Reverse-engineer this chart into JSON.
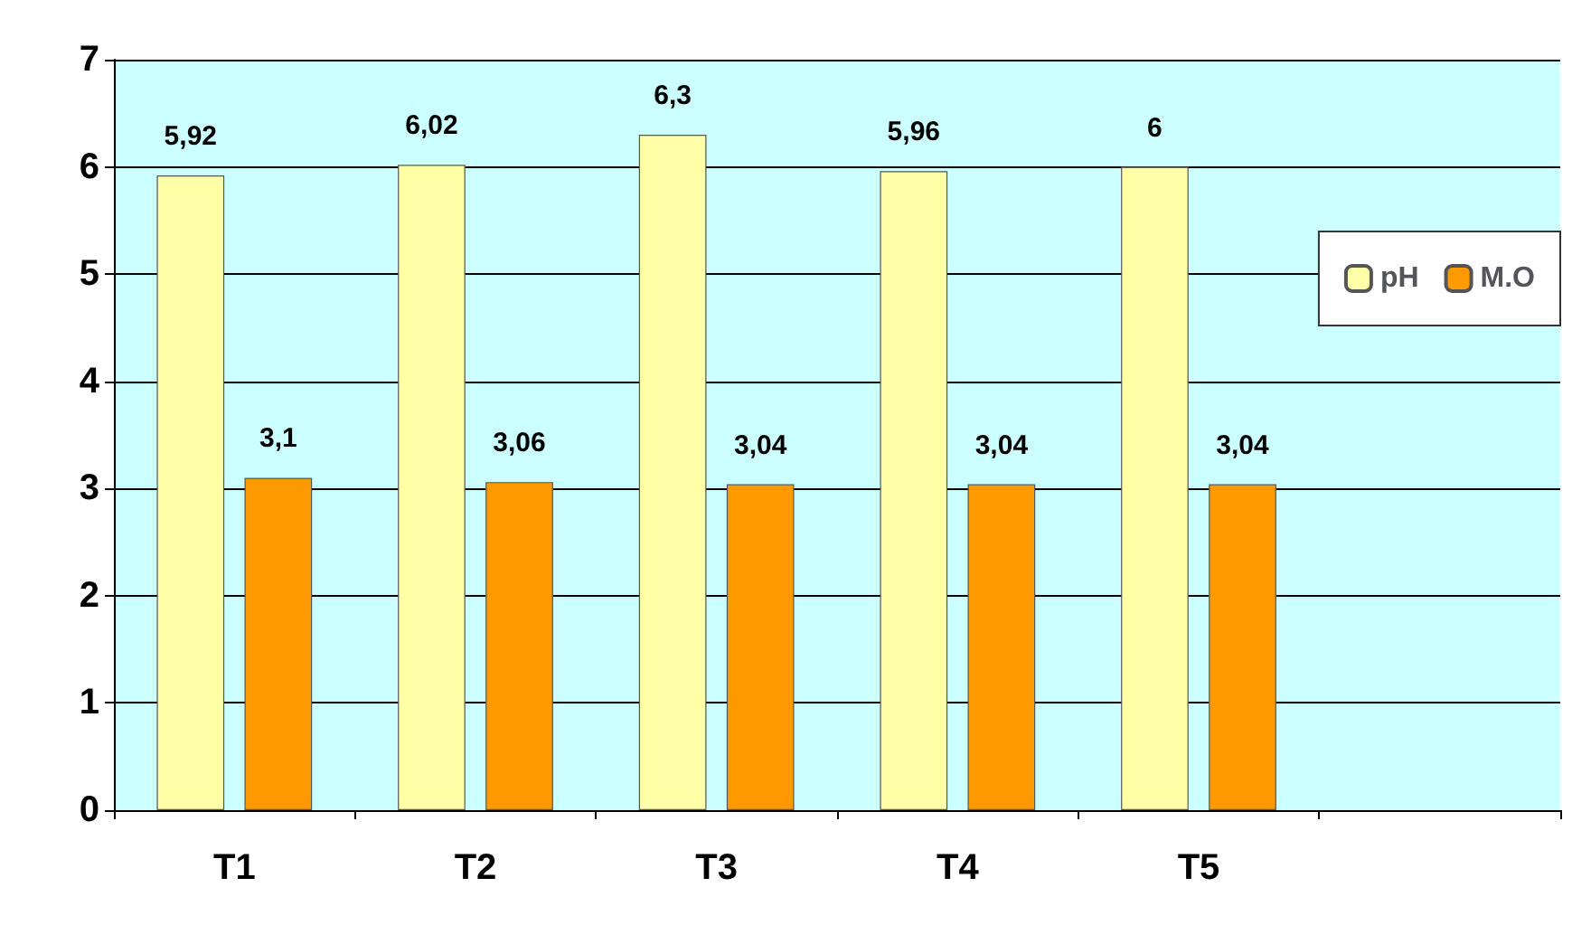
{
  "chart_data": {
    "type": "bar",
    "categories": [
      "T1",
      "T2",
      "T3",
      "T4",
      "T5",
      null
    ],
    "series": [
      {
        "name": "pH",
        "color": "#ffffa8",
        "values": [
          5.92,
          6.02,
          6.3,
          5.96,
          6,
          null
        ],
        "value_labels": [
          "5,92",
          "6,02",
          "6,3",
          "5,96",
          "6",
          null
        ]
      },
      {
        "name": "M.O",
        "color": "#ff9900",
        "values": [
          3.1,
          3.06,
          3.04,
          3.04,
          3.04,
          null
        ],
        "value_labels": [
          "3,1",
          "3,06",
          "3,04",
          "3,04",
          "3,04",
          null
        ]
      }
    ],
    "ylim": [
      0,
      7
    ],
    "yticks": [
      0,
      1,
      2,
      3,
      4,
      5,
      6,
      7
    ],
    "grid": "y",
    "legend": "right"
  }
}
